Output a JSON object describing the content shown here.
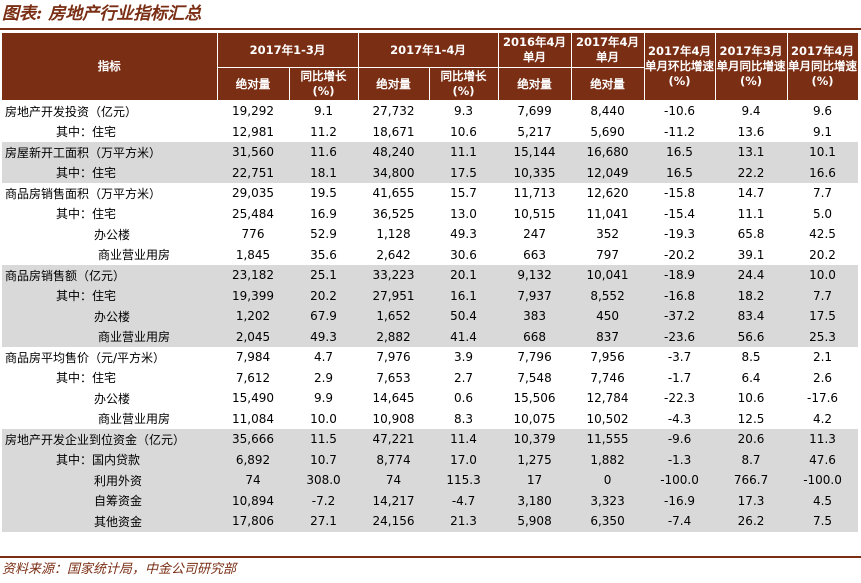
{
  "title": "图表: 房地产行业指标汇总",
  "header": {
    "indicator": "指标",
    "group1": "2017年1-3月",
    "group2": "2017年1-4月",
    "col_2016_apr": "2016年4月单月",
    "col_2017_apr": "2017年4月单月",
    "col_mom": "2017年4月单月环比增速(%)",
    "col_mar_yoy": "2017年3月单月同比增速(%)",
    "col_apr_yoy": "2017年4月单月同比增速(%)",
    "abs": "绝对量",
    "yoy": "同比增长(%)"
  },
  "rows": [
    {
      "label": "房地产开发投资（亿元）",
      "indent": 0,
      "shade": false,
      "v": [
        "19,292",
        "9.1",
        "27,732",
        "9.3",
        "7,699",
        "8,440",
        "-10.6",
        "9.4",
        "9.6"
      ]
    },
    {
      "label": "其中：住宅",
      "indent": 1,
      "shade": false,
      "v": [
        "12,981",
        "11.2",
        "18,671",
        "10.6",
        "5,217",
        "5,690",
        "-11.2",
        "13.6",
        "9.1"
      ]
    },
    {
      "label": "房屋新开工面积（万平方米）",
      "indent": 0,
      "shade": true,
      "v": [
        "31,560",
        "11.6",
        "48,240",
        "11.1",
        "15,144",
        "16,680",
        "16.5",
        "13.1",
        "10.1"
      ]
    },
    {
      "label": "其中：住宅",
      "indent": 1,
      "shade": true,
      "v": [
        "22,751",
        "18.1",
        "34,800",
        "17.5",
        "10,335",
        "12,049",
        "16.5",
        "22.2",
        "16.6"
      ]
    },
    {
      "label": "商品房销售面积（万平方米）",
      "indent": 0,
      "shade": false,
      "v": [
        "29,035",
        "19.5",
        "41,655",
        "15.7",
        "11,713",
        "12,620",
        "-15.8",
        "14.7",
        "7.7"
      ]
    },
    {
      "label": "其中：住宅",
      "indent": 1,
      "shade": false,
      "v": [
        "25,484",
        "16.9",
        "36,525",
        "13.0",
        "10,515",
        "11,041",
        "-15.4",
        "11.1",
        "5.0"
      ]
    },
    {
      "label": "办公楼",
      "indent": 2,
      "shade": false,
      "v": [
        "776",
        "52.9",
        "1,128",
        "49.3",
        "247",
        "352",
        "-19.3",
        "65.8",
        "42.5"
      ]
    },
    {
      "label": "商业营业用房",
      "indent": 3,
      "shade": false,
      "v": [
        "1,845",
        "35.6",
        "2,642",
        "30.6",
        "663",
        "797",
        "-20.2",
        "39.1",
        "20.2"
      ]
    },
    {
      "label": "商品房销售额（亿元）",
      "indent": 0,
      "shade": true,
      "v": [
        "23,182",
        "25.1",
        "33,223",
        "20.1",
        "9,132",
        "10,041",
        "-18.9",
        "24.4",
        "10.0"
      ]
    },
    {
      "label": "其中：住宅",
      "indent": 1,
      "shade": true,
      "v": [
        "19,399",
        "20.2",
        "27,951",
        "16.1",
        "7,937",
        "8,552",
        "-16.8",
        "18.2",
        "7.7"
      ]
    },
    {
      "label": "办公楼",
      "indent": 2,
      "shade": true,
      "v": [
        "1,202",
        "67.9",
        "1,652",
        "50.4",
        "383",
        "450",
        "-37.2",
        "83.4",
        "17.5"
      ]
    },
    {
      "label": "商业营业用房",
      "indent": 3,
      "shade": true,
      "v": [
        "2,045",
        "49.3",
        "2,882",
        "41.4",
        "668",
        "837",
        "-23.6",
        "56.6",
        "25.3"
      ]
    },
    {
      "label": "商品房平均售价（元/平方米）",
      "indent": 0,
      "shade": false,
      "v": [
        "7,984",
        "4.7",
        "7,976",
        "3.9",
        "7,796",
        "7,956",
        "-3.7",
        "8.5",
        "2.1"
      ]
    },
    {
      "label": "其中：住宅",
      "indent": 1,
      "shade": false,
      "v": [
        "7,612",
        "2.9",
        "7,653",
        "2.7",
        "7,548",
        "7,746",
        "-1.7",
        "6.4",
        "2.6"
      ]
    },
    {
      "label": "办公楼",
      "indent": 2,
      "shade": false,
      "v": [
        "15,490",
        "9.9",
        "14,645",
        "0.6",
        "15,506",
        "12,784",
        "-22.3",
        "10.6",
        "-17.6"
      ]
    },
    {
      "label": "商业营业用房",
      "indent": 3,
      "shade": false,
      "v": [
        "11,084",
        "10.0",
        "10,908",
        "8.3",
        "10,075",
        "10,502",
        "-4.3",
        "12.5",
        "4.2"
      ]
    },
    {
      "label": "房地产开发企业到位资金（亿元）",
      "indent": 0,
      "shade": true,
      "v": [
        "35,666",
        "11.5",
        "47,221",
        "11.4",
        "10,379",
        "11,555",
        "-9.6",
        "20.6",
        "11.3"
      ]
    },
    {
      "label": "其中：国内贷款",
      "indent": 1,
      "shade": true,
      "v": [
        "6,892",
        "10.7",
        "8,774",
        "17.0",
        "1,275",
        "1,882",
        "-1.3",
        "8.7",
        "47.6"
      ]
    },
    {
      "label": "利用外资",
      "indent": 2,
      "shade": true,
      "v": [
        "74",
        "308.0",
        "74",
        "115.3",
        "17",
        "0",
        "-100.0",
        "766.7",
        "-100.0"
      ]
    },
    {
      "label": "自筹资金",
      "indent": 2,
      "shade": true,
      "v": [
        "10,894",
        "-7.2",
        "14,217",
        "-4.7",
        "3,180",
        "3,323",
        "-16.9",
        "17.3",
        "4.5"
      ]
    },
    {
      "label": "其他资金",
      "indent": 2,
      "shade": true,
      "v": [
        "17,806",
        "27.1",
        "24,156",
        "21.3",
        "5,908",
        "6,350",
        "-7.4",
        "26.2",
        "7.5"
      ]
    }
  ],
  "footer": "资料来源：国家统计局，中金公司研究部"
}
